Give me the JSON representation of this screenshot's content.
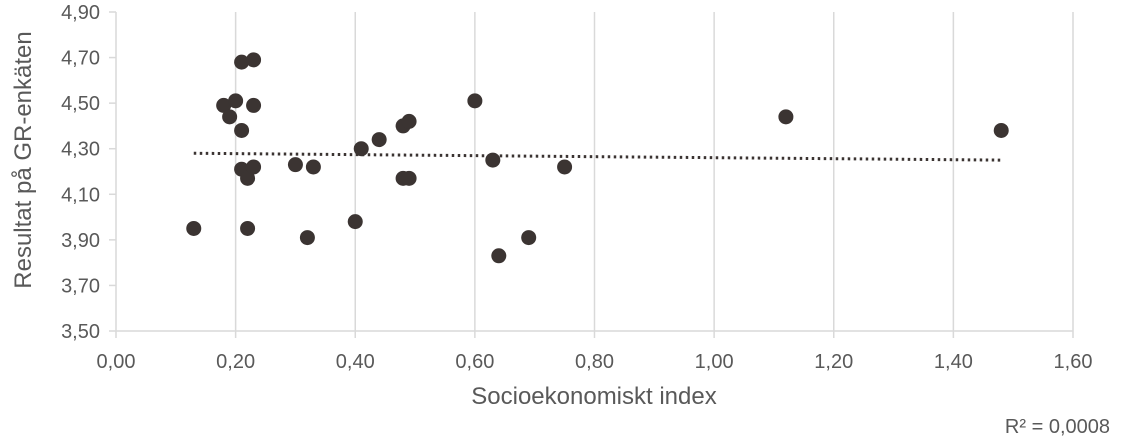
{
  "chart_data": {
    "type": "scatter",
    "xlabel": "Socioekonomiskt index",
    "ylabel": "Resultat på GR-enkäten",
    "xlim": [
      0,
      1.6
    ],
    "ylim": [
      3.5,
      4.9
    ],
    "x_ticks": [
      "0,00",
      "0,20",
      "0,40",
      "0,60",
      "0,80",
      "1,00",
      "1,20",
      "1,40",
      "1,60"
    ],
    "y_ticks": [
      "3,50",
      "3,70",
      "3,90",
      "4,10",
      "4,30",
      "4,50",
      "4,70",
      "4,90"
    ],
    "grid": "vertical",
    "marker_color": "#3b3432",
    "trendline_color": "#3b3432",
    "trendline": {
      "type": "linear",
      "x": [
        0.13,
        1.48
      ],
      "y": [
        4.28,
        4.25
      ],
      "style": "dotted"
    },
    "r_squared": "R² = 0,0008",
    "points": [
      {
        "x": 0.13,
        "y": 3.95
      },
      {
        "x": 0.18,
        "y": 4.49
      },
      {
        "x": 0.19,
        "y": 4.44
      },
      {
        "x": 0.2,
        "y": 4.51
      },
      {
        "x": 0.21,
        "y": 4.68
      },
      {
        "x": 0.21,
        "y": 4.38
      },
      {
        "x": 0.21,
        "y": 4.21
      },
      {
        "x": 0.22,
        "y": 4.17
      },
      {
        "x": 0.22,
        "y": 3.95
      },
      {
        "x": 0.23,
        "y": 4.69
      },
      {
        "x": 0.23,
        "y": 4.49
      },
      {
        "x": 0.23,
        "y": 4.22
      },
      {
        "x": 0.3,
        "y": 4.23
      },
      {
        "x": 0.32,
        "y": 3.91
      },
      {
        "x": 0.33,
        "y": 4.22
      },
      {
        "x": 0.4,
        "y": 3.98
      },
      {
        "x": 0.41,
        "y": 4.3
      },
      {
        "x": 0.44,
        "y": 4.34
      },
      {
        "x": 0.48,
        "y": 4.4
      },
      {
        "x": 0.48,
        "y": 4.17
      },
      {
        "x": 0.49,
        "y": 4.42
      },
      {
        "x": 0.49,
        "y": 4.17
      },
      {
        "x": 0.6,
        "y": 4.51
      },
      {
        "x": 0.63,
        "y": 4.25
      },
      {
        "x": 0.64,
        "y": 3.83
      },
      {
        "x": 0.69,
        "y": 3.91
      },
      {
        "x": 0.75,
        "y": 4.22
      },
      {
        "x": 1.12,
        "y": 4.44
      },
      {
        "x": 1.48,
        "y": 4.38
      }
    ]
  }
}
